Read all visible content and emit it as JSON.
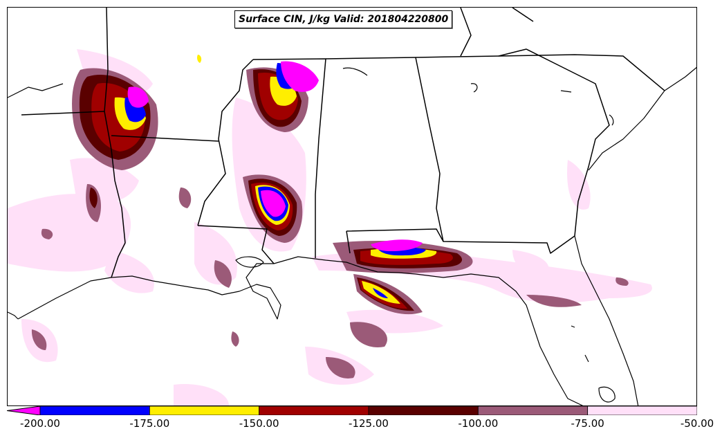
{
  "title": "Surface CIN, J/kg Valid: 201804220800",
  "colorbar": {
    "segments": [
      {
        "from": -200,
        "to": -175,
        "color": "#0000ff"
      },
      {
        "from": -175,
        "to": -150,
        "color": "#ffee00"
      },
      {
        "from": -150,
        "to": -125,
        "color": "#a00000"
      },
      {
        "from": -125,
        "to": -100,
        "color": "#5a0000"
      },
      {
        "from": -100,
        "to": -75,
        "color": "#9b5a78"
      },
      {
        "from": -75,
        "to": -50,
        "color": "#ffe0f8"
      }
    ],
    "extend_color": "#ff00ff",
    "tick_labels": [
      "-200.00",
      "-175.00",
      "-150.00",
      "-125.00",
      "-100.00",
      "-75.00",
      "-50.00"
    ]
  },
  "colors": {
    "lightest": "#ffe0f8",
    "mauve": "#9b5a78",
    "darkred": "#5a0000",
    "red": "#a00000",
    "yellow": "#ffee00",
    "blue": "#0000ff",
    "magenta": "#ff00ff"
  }
}
